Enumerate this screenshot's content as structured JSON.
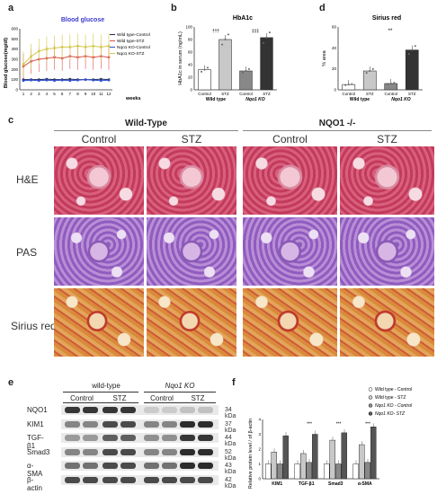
{
  "panels": {
    "a": "a",
    "b": "b",
    "c": "c",
    "d": "d",
    "e": "e",
    "f": "f"
  },
  "panel_a": {
    "title": "Blood glucose",
    "ylabel": "Blood glucose(mg/dl)",
    "xlabel": "weeks",
    "legend": [
      "Wild type-Control",
      "Wild type-STZ",
      "Nqo1 KO-Control",
      "Nqo1 KO-STZ"
    ]
  },
  "panel_b": {
    "title": "HbA1c",
    "ylabel": "HbA1c in serum (ng/mL)",
    "ticks": [
      "0",
      "20",
      "40",
      "60",
      "80",
      "100"
    ],
    "cats": [
      "Control",
      "STZ",
      "Control",
      "STZ"
    ],
    "groups": [
      "Wild type",
      "Nqo1 KO"
    ],
    "sig": [
      "†††",
      "‡‡‡"
    ]
  },
  "panel_d": {
    "title": "Sirius red",
    "ylabel": "% area",
    "ticks": [
      "0",
      "20",
      "40",
      "60"
    ],
    "cats": [
      "Control",
      "STZ",
      "Control",
      "STZ"
    ],
    "groups": [
      "Wild type",
      "Nqo1 KO"
    ],
    "sig": "**"
  },
  "panel_c": {
    "group_left": "Wild-Type",
    "group_right": "NQO1 -/-",
    "cols": [
      "Control",
      "STZ",
      "Control",
      "STZ"
    ],
    "rows": [
      "H&E",
      "PAS",
      "Sirius red"
    ]
  },
  "panel_e": {
    "group_left": "wild-type",
    "group_right": "Nqo1 KO",
    "cols": [
      "Control",
      "STZ",
      "Control",
      "STZ"
    ],
    "proteins": [
      "NQO1",
      "KIM1",
      "TGF-β1",
      "Smad3",
      "α-SMA",
      "β-actin"
    ],
    "kda": [
      "34 kDa",
      "37 kDa",
      "44 kDa",
      "52 kDa",
      "43 kDa",
      "42 kDa"
    ]
  },
  "panel_f": {
    "ylabel": "Relative protein level / of β-actin",
    "ticks": [
      "0",
      "1",
      "2",
      "3",
      "4"
    ],
    "cats": [
      "KIM1",
      "TGF-β1",
      "Smad3",
      "α-SMA"
    ],
    "sig": [
      "***",
      "***",
      "***",
      "***"
    ],
    "legend": [
      "Wild type - Control",
      "Wild type - STZ",
      "Nqo1 KO - Control",
      "Nqo1 KO- STZ"
    ]
  },
  "chart_data": [
    {
      "type": "line",
      "title": "Blood glucose",
      "xlabel": "weeks",
      "ylabel": "Blood glucose(mg/dl)",
      "x": [
        1,
        2,
        3,
        4,
        5,
        6,
        7,
        8,
        9,
        10,
        11,
        12
      ],
      "ylim": [
        0,
        600
      ],
      "series": [
        {
          "name": "Wild type-Control",
          "color": "#1f2a5a",
          "values": [
            100,
            100,
            100,
            105,
            100,
            100,
            105,
            100,
            100,
            100,
            105,
            100
          ]
        },
        {
          "name": "Wild type-STZ",
          "color": "#d9534f",
          "values": [
            230,
            280,
            300,
            310,
            320,
            310,
            330,
            320,
            330,
            320,
            330,
            320
          ]
        },
        {
          "name": "Nqo1 KO-Control",
          "color": "#2f4fcf",
          "values": [
            90,
            95,
            90,
            95,
            90,
            95,
            90,
            95,
            100,
            95,
            90,
            95
          ]
        },
        {
          "name": "Nqo1 KO-STZ",
          "color": "#d4c84a",
          "values": [
            250,
            330,
            380,
            400,
            410,
            420,
            420,
            430,
            420,
            430,
            420,
            430
          ]
        }
      ]
    },
    {
      "type": "bar",
      "title": "HbA1c",
      "ylabel": "HbA1c in serum (ng/mL)",
      "categories": [
        "Control",
        "STZ",
        "Control",
        "STZ"
      ],
      "values": [
        32,
        80,
        30,
        83
      ],
      "colors": [
        "#ffffff",
        "#c8c8c8",
        "#888888",
        "#333333"
      ],
      "ylim": [
        0,
        100
      ]
    },
    {
      "type": "bar",
      "title": "Sirius red",
      "ylabel": "% area",
      "categories": [
        "Control",
        "STZ",
        "Control",
        "STZ"
      ],
      "values": [
        5,
        18,
        6,
        38
      ],
      "colors": [
        "#ffffff",
        "#c8c8c8",
        "#888888",
        "#333333"
      ],
      "ylim": [
        0,
        60
      ]
    },
    {
      "type": "bar",
      "ylabel": "Relative protein level / of β-actin",
      "categories": [
        "KIM1",
        "TGF-β1",
        "Smad3",
        "α-SMA"
      ],
      "ylim": [
        0,
        4
      ],
      "series": [
        {
          "name": "Wild type - Control",
          "color": "#ffffff",
          "values": [
            1.0,
            1.0,
            1.0,
            1.0
          ]
        },
        {
          "name": "Wild type - STZ",
          "color": "#c8c8c8",
          "values": [
            1.8,
            1.7,
            2.6,
            2.3
          ]
        },
        {
          "name": "Nqo1 KO - Control",
          "color": "#888888",
          "values": [
            1.0,
            1.1,
            1.0,
            1.1
          ]
        },
        {
          "name": "Nqo1 KO- STZ",
          "color": "#555555",
          "values": [
            2.9,
            3.0,
            3.1,
            3.5
          ]
        }
      ]
    }
  ]
}
